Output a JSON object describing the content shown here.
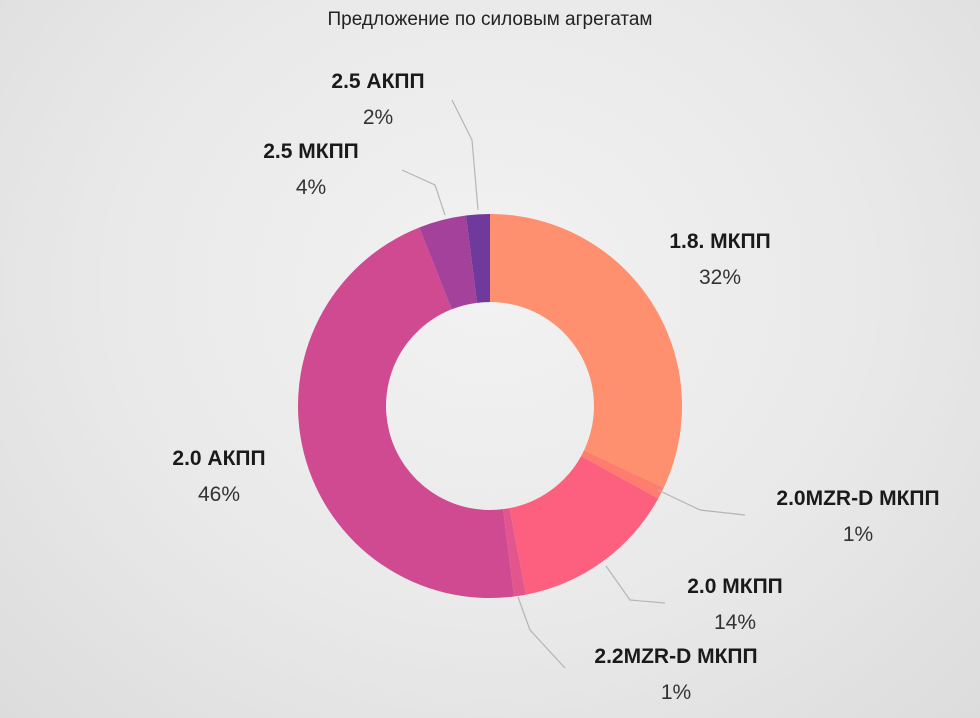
{
  "chart_data": {
    "type": "pie",
    "variant": "donut",
    "title": "Предложение по силовым агрегатам",
    "start_angle_deg": 0,
    "direction": "clockwise",
    "slices": [
      {
        "label": "1.8. МКПП",
        "value": 32,
        "display": "32%",
        "color": "#fe8f6f"
      },
      {
        "label": "2.0MZR-D МКПП",
        "value": 1,
        "display": "1%",
        "color": "#fe7d6f"
      },
      {
        "label": "2.0 МКПП",
        "value": 14,
        "display": "14%",
        "color": "#fd607f"
      },
      {
        "label": "2.2MZR-D МКПП",
        "value": 1,
        "display": "1%",
        "color": "#e3558d"
      },
      {
        "label": "2.0 АКПП",
        "value": 46,
        "display": "46%",
        "color": "#cf4a90"
      },
      {
        "label": "2.5 МКПП",
        "value": 4,
        "display": "4%",
        "color": "#a4419a"
      },
      {
        "label": "2.5 АКПП",
        "value": 2,
        "display": "2%",
        "color": "#6f3a9b"
      }
    ]
  }
}
